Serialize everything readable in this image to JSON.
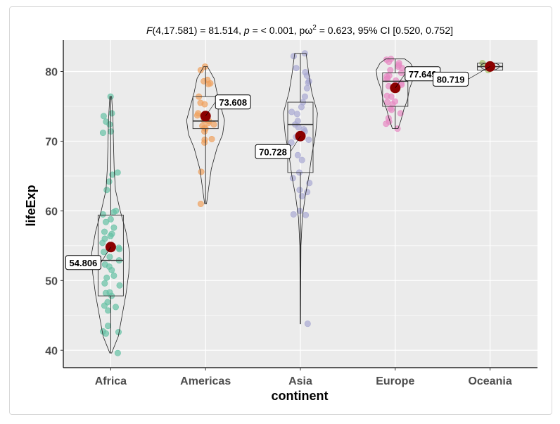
{
  "chart_data": {
    "type": "violin-box-jitter",
    "subtitle": {
      "F": "F",
      "df": "(4,17.581) = 81.514, ",
      "p_label": "p",
      "p_value": " = < 0.001, pω",
      "sup": "2",
      "rest": " = 0.623, 95% CI [0.520, 0.752]"
    },
    "xlabel": "continent",
    "ylabel": "lifeExp",
    "ylim": [
      37.5,
      84.5
    ],
    "yticks": [
      40,
      50,
      60,
      70,
      80
    ],
    "categories": [
      "Africa",
      "Americas",
      "Asia",
      "Europe",
      "Oceania"
    ],
    "colors": {
      "Africa": "#66c2a5",
      "Americas": "#f0a15e",
      "Asia": "#a9a9d3",
      "Europe": "#e78ac3",
      "Oceania": "#a6c26b",
      "mean": "#8b0000",
      "panel": "#ebebeb",
      "grid": "#ffffff"
    },
    "groups": [
      {
        "name": "Africa",
        "mean": 54.806,
        "mean_label": "54.806",
        "box": {
          "q1": 47.8,
          "median": 52.9,
          "q3": 59.4,
          "lo": 39.6,
          "hi": 76.4
        },
        "violin": [
          [
            39.6,
            0.05
          ],
          [
            42,
            0.4
          ],
          [
            45,
            0.6
          ],
          [
            48,
            0.8
          ],
          [
            51,
            0.95
          ],
          [
            54,
            1.0
          ],
          [
            57,
            0.8
          ],
          [
            60,
            0.5
          ],
          [
            63,
            0.25
          ],
          [
            66,
            0.18
          ],
          [
            70,
            0.14
          ],
          [
            73,
            0.12
          ],
          [
            76.4,
            0.05
          ]
        ],
        "points": [
          76.4,
          74.0,
          73.6,
          72.8,
          72.4,
          71.4,
          71.2,
          65.5,
          65.2,
          64.2,
          63.0,
          60.0,
          59.8,
          59.5,
          58.8,
          58.4,
          57.6,
          57.0,
          56.7,
          56.4,
          56.0,
          55.4,
          54.7,
          54.5,
          54.1,
          53.4,
          52.9,
          52.3,
          52.0,
          51.5,
          50.7,
          50.4,
          49.6,
          49.3,
          48.3,
          48.2,
          47.8,
          46.9,
          46.4,
          46.2,
          45.7,
          43.5,
          42.7,
          42.6,
          42.4,
          39.6
        ],
        "label_pos": "left"
      },
      {
        "name": "Americas",
        "mean": 73.608,
        "mean_label": "73.608",
        "box": {
          "q1": 71.8,
          "median": 72.9,
          "q3": 76.4,
          "lo": 61.0,
          "hi": 80.7
        },
        "violin": [
          [
            61.0,
            0.05
          ],
          [
            63,
            0.15
          ],
          [
            66,
            0.3
          ],
          [
            69,
            0.6
          ],
          [
            71,
            0.9
          ],
          [
            73,
            1.0
          ],
          [
            75,
            0.8
          ],
          [
            77,
            0.6
          ],
          [
            79,
            0.45
          ],
          [
            80.7,
            0.1
          ]
        ],
        "points": [
          80.7,
          80.2,
          78.8,
          78.6,
          78.3,
          78.2,
          76.4,
          75.5,
          75.3,
          74.0,
          73.7,
          73.0,
          72.9,
          72.6,
          72.4,
          72.2,
          71.9,
          71.8,
          71.4,
          70.3,
          70.2,
          69.8,
          65.6,
          61.0
        ],
        "label_pos": "right"
      },
      {
        "name": "Asia",
        "mean": 70.728,
        "mean_label": "70.728",
        "box": {
          "q1": 65.5,
          "median": 72.4,
          "q3": 75.6,
          "lo": 43.8,
          "hi": 82.6
        },
        "violin": [
          [
            43.8,
            0.01
          ],
          [
            50,
            0.02
          ],
          [
            55,
            0.03
          ],
          [
            59,
            0.1
          ],
          [
            62,
            0.25
          ],
          [
            65,
            0.45
          ],
          [
            68,
            0.6
          ],
          [
            71,
            0.8
          ],
          [
            74,
            0.9
          ],
          [
            77,
            0.6
          ],
          [
            79.5,
            0.45
          ],
          [
            82.6,
            0.3
          ]
        ],
        "points": [
          82.6,
          82.2,
          80.5,
          79.9,
          79.4,
          78.6,
          78.4,
          77.6,
          76.4,
          75.6,
          74.9,
          74.2,
          73.9,
          72.9,
          72.4,
          72.0,
          71.7,
          71.4,
          70.6,
          70.2,
          69.8,
          68.0,
          67.3,
          65.5,
          64.7,
          64.0,
          63.0,
          62.7,
          62.1,
          60.0,
          59.5,
          59.4,
          43.8
        ],
        "label_pos": "left"
      },
      {
        "name": "Europe",
        "mean": 77.649,
        "mean_label": "77.649",
        "box": {
          "q1": 75.0,
          "median": 78.6,
          "q3": 79.8,
          "lo": 71.8,
          "hi": 81.8
        },
        "violin": [
          [
            71.8,
            0.15
          ],
          [
            73,
            0.3
          ],
          [
            74.5,
            0.45
          ],
          [
            76,
            0.65
          ],
          [
            77.5,
            0.75
          ],
          [
            79,
            0.95
          ],
          [
            80.2,
            1.0
          ],
          [
            81.2,
            0.8
          ],
          [
            81.8,
            0.5
          ]
        ],
        "points": [
          81.8,
          81.7,
          81.4,
          81.2,
          80.9,
          80.7,
          80.5,
          80.2,
          79.8,
          79.4,
          79.3,
          79.0,
          78.9,
          78.7,
          78.3,
          78.1,
          77.9,
          77.6,
          76.5,
          76.4,
          75.7,
          75.6,
          75.3,
          74.7,
          74.5,
          74.0,
          73.3,
          72.8,
          72.5,
          71.8
        ],
        "label_pos": "right"
      },
      {
        "name": "Oceania",
        "mean": 80.719,
        "mean_label": "80.719",
        "box": {
          "q1": 80.2,
          "median": 80.7,
          "q3": 81.2,
          "lo": 80.2,
          "hi": 81.2
        },
        "violin": [
          [
            80.2,
            0.25
          ],
          [
            80.5,
            0.45
          ],
          [
            80.7,
            0.5
          ],
          [
            81.0,
            0.45
          ],
          [
            81.2,
            0.25
          ]
        ],
        "points": [
          81.2,
          80.2
        ],
        "label_pos": "left"
      }
    ]
  }
}
